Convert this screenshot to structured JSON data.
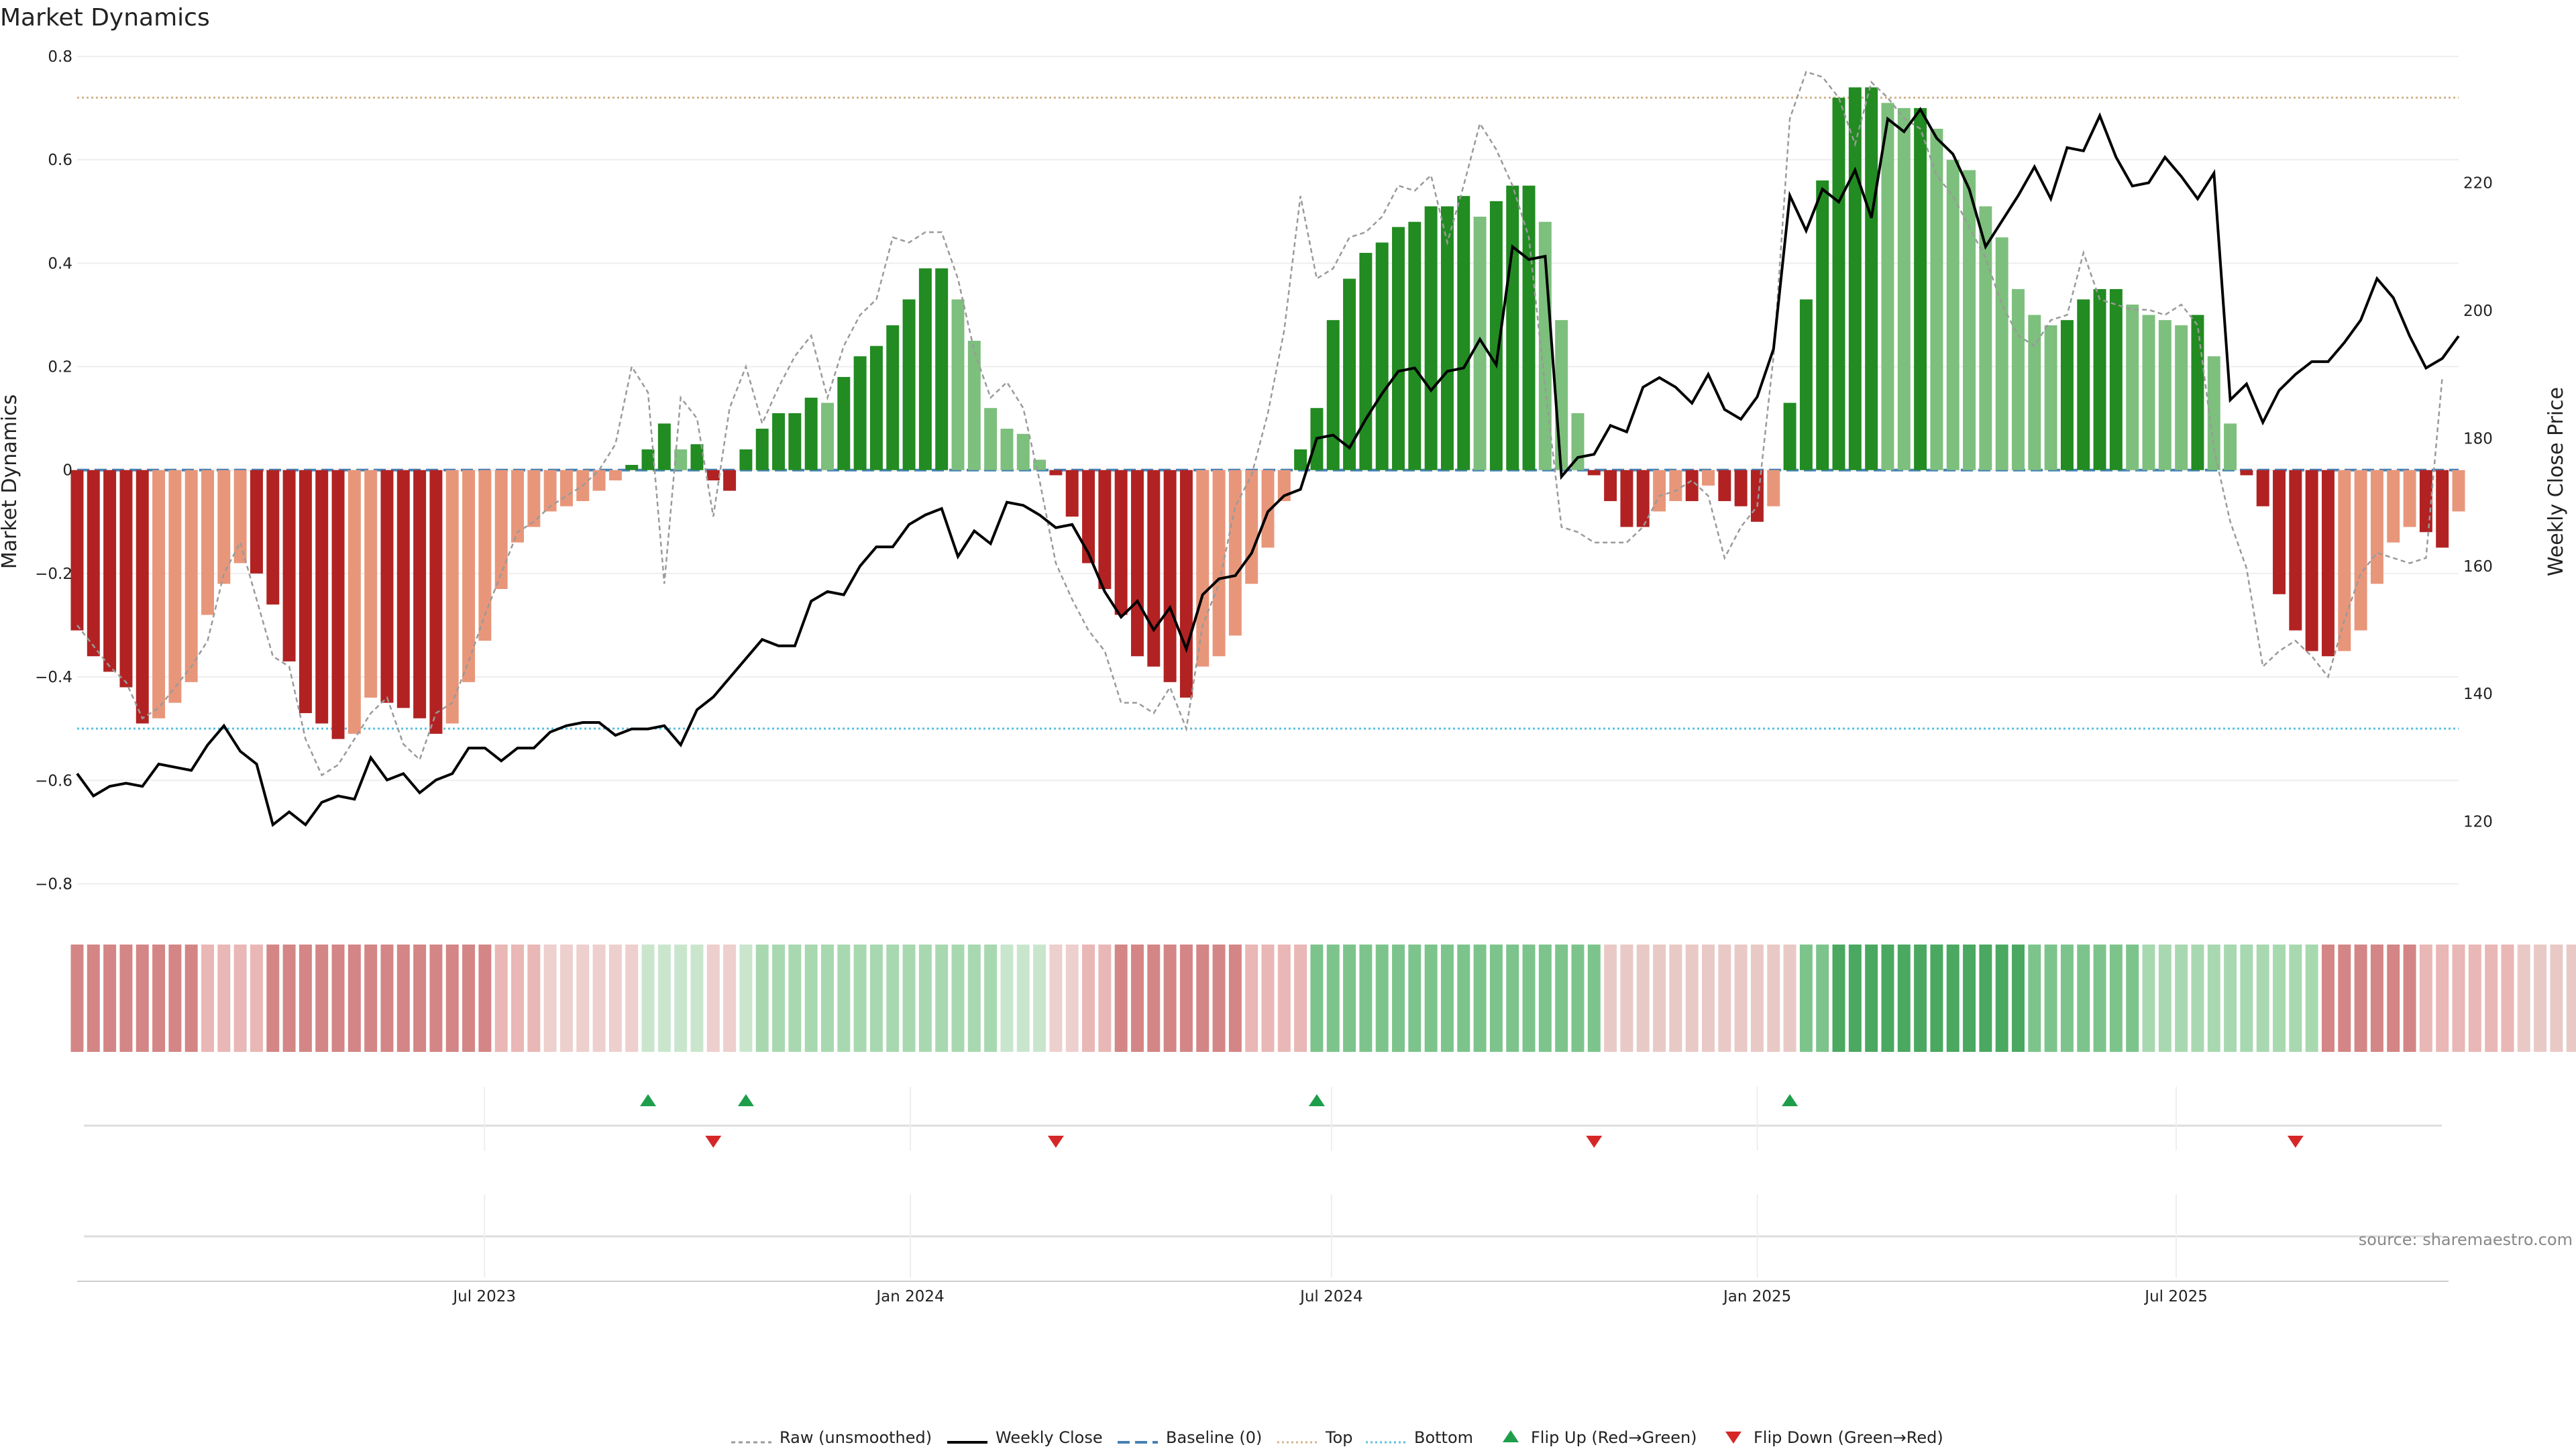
{
  "chart_data": {
    "type": "bar",
    "title": "Market Dynamics",
    "ylabel_left": "Market Dynamics",
    "ylabel_right": "Weekly Close Price",
    "ylim_left": [
      -0.85,
      0.8
    ],
    "ylim_right": [
      106.2,
      239.8
    ],
    "yticks_left": [
      "0.8",
      "0.6",
      "0.4",
      "0.2",
      "0",
      "−0.2",
      "−0.4",
      "−0.6",
      "−0.8"
    ],
    "yticks_right": [
      "220",
      "200",
      "180",
      "160",
      "140",
      "120"
    ],
    "x_start": "2023-01-06",
    "x_end": "2025-10-31",
    "xticks": [
      {
        "date": "2023-07-01",
        "label": "Jul 2023"
      },
      {
        "date": "2024-01-01",
        "label": "Jan 2024"
      },
      {
        "date": "2024-07-01",
        "label": "Jul 2024"
      },
      {
        "date": "2025-01-01",
        "label": "Jan 2025"
      },
      {
        "date": "2025-07-01",
        "label": "Jul 2025"
      }
    ],
    "top_level": 0.72,
    "bottom_level": -0.5,
    "baseline": 0,
    "bars": [
      -0.31,
      -0.36,
      -0.39,
      -0.42,
      -0.49,
      -0.48,
      -0.45,
      -0.41,
      -0.28,
      -0.22,
      -0.18,
      -0.2,
      -0.26,
      -0.37,
      -0.47,
      -0.49,
      -0.52,
      -0.51,
      -0.44,
      -0.45,
      -0.46,
      -0.48,
      -0.51,
      -0.49,
      -0.41,
      -0.33,
      -0.23,
      -0.14,
      -0.11,
      -0.08,
      -0.07,
      -0.06,
      -0.04,
      -0.02,
      0.01,
      0.04,
      0.09,
      0.04,
      0.05,
      -0.02,
      -0.04,
      0.04,
      0.08,
      0.11,
      0.11,
      0.14,
      0.13,
      0.18,
      0.22,
      0.24,
      0.28,
      0.33,
      0.39,
      0.39,
      0.33,
      0.25,
      0.12,
      0.08,
      0.07,
      0.02,
      -0.01,
      -0.09,
      -0.18,
      -0.23,
      -0.28,
      -0.36,
      -0.38,
      -0.41,
      -0.44,
      -0.38,
      -0.36,
      -0.32,
      -0.22,
      -0.15,
      -0.06,
      0.04,
      0.12,
      0.29,
      0.37,
      0.42,
      0.44,
      0.47,
      0.48,
      0.51,
      0.51,
      0.53,
      0.49,
      0.52,
      0.55,
      0.55,
      0.48,
      0.29,
      0.11,
      -0.01,
      -0.06,
      -0.11,
      -0.11,
      -0.08,
      -0.06,
      -0.06,
      -0.03,
      -0.06,
      -0.07,
      -0.1,
      -0.07,
      0.13,
      0.33,
      0.56,
      0.72,
      0.74,
      0.74,
      0.71,
      0.7,
      0.7,
      0.66,
      0.6,
      0.58,
      0.51,
      0.45,
      0.35,
      0.3,
      0.28,
      0.29,
      0.33,
      0.35,
      0.35,
      0.32,
      0.3,
      0.29,
      0.28,
      0.3,
      0.22,
      0.09,
      -0.01,
      -0.07,
      -0.24,
      -0.31,
      -0.35,
      -0.36,
      -0.35,
      -0.31,
      -0.22,
      -0.14,
      -0.11,
      -0.12,
      -0.15,
      -0.08
    ],
    "raw": [
      -0.3,
      -0.34,
      -0.38,
      -0.41,
      -0.48,
      -0.46,
      -0.42,
      -0.38,
      -0.33,
      -0.2,
      -0.14,
      -0.25,
      -0.36,
      -0.38,
      -0.52,
      -0.59,
      -0.57,
      -0.52,
      -0.47,
      -0.44,
      -0.53,
      -0.56,
      -0.47,
      -0.45,
      -0.37,
      -0.28,
      -0.2,
      -0.12,
      -0.1,
      -0.07,
      -0.05,
      -0.03,
      0.0,
      0.05,
      0.2,
      0.15,
      -0.22,
      0.14,
      0.1,
      -0.09,
      0.12,
      0.2,
      0.09,
      0.16,
      0.22,
      0.26,
      0.14,
      0.24,
      0.3,
      0.33,
      0.45,
      0.44,
      0.46,
      0.46,
      0.37,
      0.23,
      0.14,
      0.17,
      0.12,
      -0.02,
      -0.18,
      -0.25,
      -0.31,
      -0.35,
      -0.45,
      -0.45,
      -0.47,
      -0.42,
      -0.5,
      -0.3,
      -0.22,
      -0.07,
      -0.01,
      0.11,
      0.27,
      0.53,
      0.37,
      0.39,
      0.45,
      0.46,
      0.49,
      0.55,
      0.54,
      0.57,
      0.44,
      0.55,
      0.67,
      0.62,
      0.55,
      0.45,
      0.16,
      -0.11,
      -0.12,
      -0.14,
      -0.14,
      -0.14,
      -0.11,
      -0.05,
      -0.04,
      -0.02,
      -0.05,
      -0.17,
      -0.11,
      -0.07,
      0.22,
      0.68,
      0.77,
      0.76,
      0.72,
      0.63,
      0.75,
      0.72,
      0.68,
      0.66,
      0.57,
      0.53,
      0.47,
      0.41,
      0.32,
      0.26,
      0.24,
      0.29,
      0.3,
      0.42,
      0.33,
      0.32,
      0.31,
      0.31,
      0.3,
      0.32,
      0.28,
      0.04,
      -0.1,
      -0.19,
      -0.38,
      -0.35,
      -0.33,
      -0.36,
      -0.4,
      -0.29,
      -0.2,
      -0.16,
      -0.17,
      -0.18,
      -0.17,
      0.18
    ],
    "close": [
      127.5,
      124,
      125.5,
      126,
      125.5,
      129,
      128.5,
      128,
      132,
      135,
      131,
      129,
      119.5,
      121.5,
      119.5,
      123,
      124,
      123.5,
      130,
      126.5,
      127.5,
      124.5,
      126.5,
      127.5,
      131.5,
      131.5,
      129.5,
      131.5,
      131.5,
      134,
      135,
      135.5,
      135.5,
      133.5,
      134.5,
      134.5,
      135,
      132,
      137.5,
      139.5,
      142.5,
      145.5,
      148.5,
      147.5,
      147.5,
      154.5,
      156,
      155.5,
      160,
      163,
      163,
      166.5,
      168,
      169,
      161.5,
      165.5,
      163.5,
      170,
      169.5,
      168,
      166,
      166.5,
      162,
      156,
      152,
      154.5,
      150,
      153.5,
      147,
      155.5,
      158,
      158.5,
      162,
      168.5,
      171,
      172,
      180,
      180.5,
      178.5,
      183,
      187,
      190.5,
      191,
      187.5,
      190.5,
      191,
      195.5,
      191.5,
      210,
      208,
      208.5,
      174,
      177,
      177.5,
      182,
      181,
      188,
      189.5,
      188,
      185.5,
      190,
      184.5,
      183,
      186.5,
      194,
      218,
      212.5,
      219,
      217,
      222,
      214.5,
      230,
      228,
      231.5,
      227,
      224.5,
      219,
      210,
      214,
      218,
      222.5,
      217.5,
      225.5,
      225,
      230.5,
      224,
      219.5,
      220,
      224,
      221,
      217.5,
      221.5,
      186,
      188.5,
      182.5,
      187.5,
      190,
      192,
      192,
      195,
      198.5,
      205,
      202,
      196,
      191,
      192.5,
      196
    ],
    "color_strip": [
      "#d48585",
      "#d48585",
      "#d48585",
      "#d48585",
      "#d48585",
      "#d48585",
      "#d48585",
      "#d48585",
      "#e9b7b5",
      "#e9b7b5",
      "#e9b7b5",
      "#e9b7b5",
      "#d48585",
      "#d48585",
      "#d48585",
      "#d48585",
      "#d48585",
      "#d48585",
      "#d48585",
      "#d48585",
      "#d48585",
      "#d48585",
      "#d48585",
      "#d48585",
      "#d48585",
      "#d48585",
      "#e9b7b5",
      "#e9b7b5",
      "#e9b7b5",
      "#edcfcd",
      "#edcfcd",
      "#edcfcd",
      "#edcfcd",
      "#edcfcd",
      "#edcfcd",
      "#c9e6cd",
      "#c9e6cd",
      "#c9e6cd",
      "#c9e6cd",
      "#edcfcd",
      "#edcfcd",
      "#c9e6cd",
      "#a8d8b0",
      "#a8d8b0",
      "#a8d8b0",
      "#a8d8b0",
      "#a8d8b0",
      "#a8d8b0",
      "#a8d8b0",
      "#a8d8b0",
      "#a8d8b0",
      "#a8d8b0",
      "#a8d8b0",
      "#a8d8b0",
      "#a8d8b0",
      "#a8d8b0",
      "#a8d8b0",
      "#c9e6cd",
      "#c9e6cd",
      "#c9e6cd",
      "#edcfcd",
      "#edcfcd",
      "#e9b7b5",
      "#e9b7b5",
      "#d48585",
      "#d48585",
      "#d48585",
      "#d48585",
      "#d48585",
      "#d48585",
      "#d48585",
      "#d48585",
      "#e9b7b5",
      "#e9b7b5",
      "#e9b7b5",
      "#e9b7b5",
      "#7cc48b",
      "#7cc48b",
      "#7cc48b",
      "#7cc48b",
      "#7cc48b",
      "#7cc48b",
      "#7cc48b",
      "#7cc48b",
      "#7cc48b",
      "#7cc48b",
      "#7cc48b",
      "#7cc48b",
      "#7cc48b",
      "#7cc48b",
      "#7cc48b",
      "#7cc48b",
      "#7cc48b",
      "#7cc48b",
      "#e9c9c6",
      "#e9c9c6",
      "#e9c9c6",
      "#e9c9c6",
      "#e9c9c6",
      "#e9c9c6",
      "#e9c9c6",
      "#e9c9c6",
      "#e9c9c6",
      "#e9c9c6",
      "#e9c9c6",
      "#e9c9c6",
      "#7cc48b",
      "#7cc48b",
      "#4aa861",
      "#4aa861",
      "#4aa861",
      "#4aa861",
      "#4aa861",
      "#4aa861",
      "#4aa861",
      "#4aa861",
      "#4aa861",
      "#4aa861",
      "#4aa861",
      "#4aa861",
      "#7cc48b",
      "#7cc48b",
      "#7cc48b",
      "#7cc48b",
      "#7cc48b",
      "#7cc48b",
      "#7cc48b",
      "#a8d8b0",
      "#a8d8b0",
      "#a8d8b0",
      "#a8d8b0",
      "#a8d8b0",
      "#a8d8b0",
      "#a8d8b0",
      "#a8d8b0",
      "#a8d8b0",
      "#a8d8b0",
      "#a8d8b0",
      "#d48585",
      "#d48585",
      "#d48585",
      "#d48585",
      "#d48585",
      "#d48585",
      "#e9b7b5",
      "#e9b7b5",
      "#e9b7b5",
      "#e9b7b5",
      "#e9b7b5",
      "#e9b7b5",
      "#e9c9c6",
      "#e9c9c6",
      "#e9c9c6",
      "#e9c9c6"
    ],
    "flips_up": [
      35,
      41,
      76,
      105
    ],
    "flips_down": [
      39,
      60,
      93,
      136
    ],
    "legend": [
      "Raw (unsmoothed)",
      "Weekly Close",
      "Baseline (0)",
      "Top",
      "Bottom",
      "Flip Up (Red→Green)",
      "Flip Down (Green→Red)"
    ],
    "legend_placement": "bottom-center",
    "grid": true
  },
  "colors": {
    "pos_strong": "#228b22",
    "pos_fading": "#7dbf7d",
    "neg_strong": "#b22222",
    "neg_fading": "#e8967a",
    "close_line": "#000000",
    "raw_line": "#9a9a9a",
    "baseline": "#4682b4",
    "top_line": "#d2b48c",
    "bottom_line": "#5bc0de",
    "flip_up": "#1e9e4a",
    "flip_down": "#d62728"
  },
  "source_text": "source: sharemaestro.com"
}
